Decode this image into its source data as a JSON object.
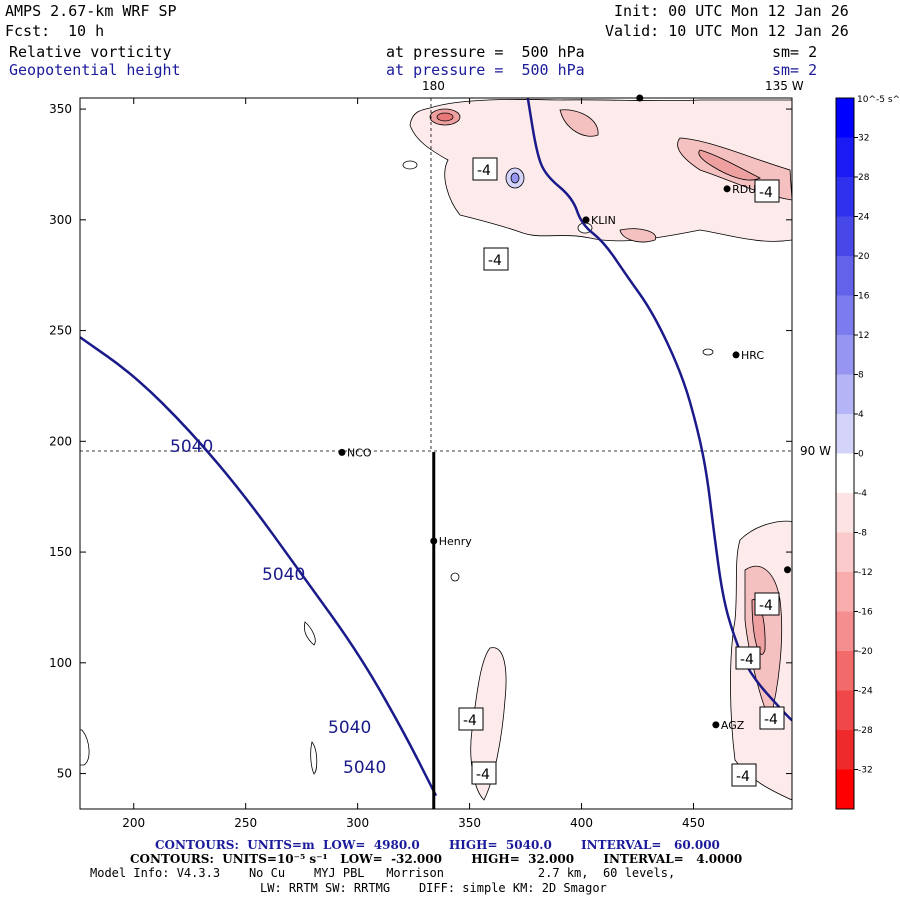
{
  "header": {
    "model": "AMPS 2.67-km WRF SP",
    "forecast_label": "Fcst:",
    "forecast_hours": "10 h",
    "init": "Init: 00 UTC Mon 12 Jan 26",
    "valid": "Valid: 10 UTC Mon 12 Jan 26",
    "field1_name": "Relative vorticity",
    "field1_level": "at pressure =  500 hPa",
    "field1_smooth": "sm= 2",
    "field2_name": "Geopotential height",
    "field2_level": "at pressure =  500 hPa",
    "field2_smooth": "sm= 2"
  },
  "map_labels": {
    "meridian_180": "180",
    "meridian_135w": "135 W",
    "meridian_90w": "90 W",
    "stations": [
      "NCO",
      "Henry",
      "KLIN",
      "RDU",
      "HRC",
      "AGZ"
    ],
    "vort_labels": [
      "-4",
      "-4",
      "-4",
      "-4",
      "-4",
      "-4",
      "-4",
      "-4",
      "-4"
    ],
    "height_labels": [
      "5040",
      "5040",
      "5040",
      "5040"
    ]
  },
  "chart_data": {
    "type": "contour-map",
    "x_ticks": [
      200,
      250,
      300,
      350,
      400,
      450
    ],
    "y_ticks": [
      50,
      100,
      150,
      200,
      250,
      300,
      350
    ],
    "xlim": [
      176,
      494
    ],
    "ylim": [
      34,
      355
    ],
    "geopotential_contours": [
      {
        "level": 5040,
        "points": [
          [
            176,
            247
          ],
          [
            200,
            230
          ],
          [
            225,
            205
          ],
          [
            250,
            175
          ],
          [
            275,
            140
          ],
          [
            300,
            105
          ],
          [
            320,
            70
          ],
          [
            335,
            40
          ]
        ]
      },
      {
        "level": 5040,
        "points": [
          [
            376,
            355
          ],
          [
            380,
            330
          ],
          [
            384,
            320
          ],
          [
            396,
            310
          ],
          [
            400,
            298
          ],
          [
            410,
            290
          ],
          [
            420,
            275
          ],
          [
            432,
            258
          ],
          [
            445,
            230
          ],
          [
            452,
            205
          ],
          [
            456,
            185
          ],
          [
            459,
            160
          ],
          [
            463,
            130
          ],
          [
            468,
            112
          ],
          [
            475,
            95
          ],
          [
            490,
            78
          ],
          [
            494,
            74
          ]
        ]
      }
    ],
    "stations": [
      {
        "name": "NCO",
        "x": 293,
        "y": 195
      },
      {
        "name": "Henry",
        "x": 334,
        "y": 155
      },
      {
        "name": "KLIN",
        "x": 402,
        "y": 300
      },
      {
        "name": "RDU",
        "x": 465,
        "y": 314
      },
      {
        "name": "HRC",
        "x": 469,
        "y": 239
      },
      {
        "name": "AGZ",
        "x": 460,
        "y": 72
      },
      {
        "name": "",
        "x": 426,
        "y": 355
      },
      {
        "name": "",
        "x": 492,
        "y": 142
      }
    ],
    "cross_section": {
      "x": 334,
      "y_from": 34,
      "y_to": 195
    },
    "colorbar": {
      "units_label": "10^-5 s^-1",
      "levels": [
        32,
        28,
        24,
        20,
        16,
        12,
        8,
        4,
        0,
        -4,
        -8,
        -12,
        -16,
        -20,
        -24,
        -28,
        -32
      ],
      "colors": [
        "#0000ff",
        "#1a1af5",
        "#3030ef",
        "#4848e8",
        "#6262ea",
        "#7c7cee",
        "#9696f2",
        "#b4b4f6",
        "#d4d4fa",
        "#ffffff",
        "#fde4e4",
        "#fbcaca",
        "#f8acac",
        "#f58e8e",
        "#f26a6a",
        "#f04848",
        "#ee2a2a",
        "#ff0000"
      ]
    }
  },
  "footer": {
    "contours1": "CONTOURS:  UNITS=m  LOW=  4980.0       HIGH=  5040.0       INTERVAL=   60.000",
    "contours2": "CONTOURS:  UNITS=10⁻⁵ s⁻¹   LOW=  -32.000       HIGH=  32.000       INTERVAL=   4.0000",
    "model_info": "Model Info: V4.3.3    No Cu    MYJ PBL   Morrison             2.7 km,  60 levels,",
    "physics": "LW: RRTM SW: RRTMG    DIFF: simple KM: 2D Smagor"
  },
  "colors": {
    "height_line": "#1a1a8a",
    "vort_neg_light": "#fbe0e0",
    "vort_neg_mid": "#f2b4b4"
  }
}
